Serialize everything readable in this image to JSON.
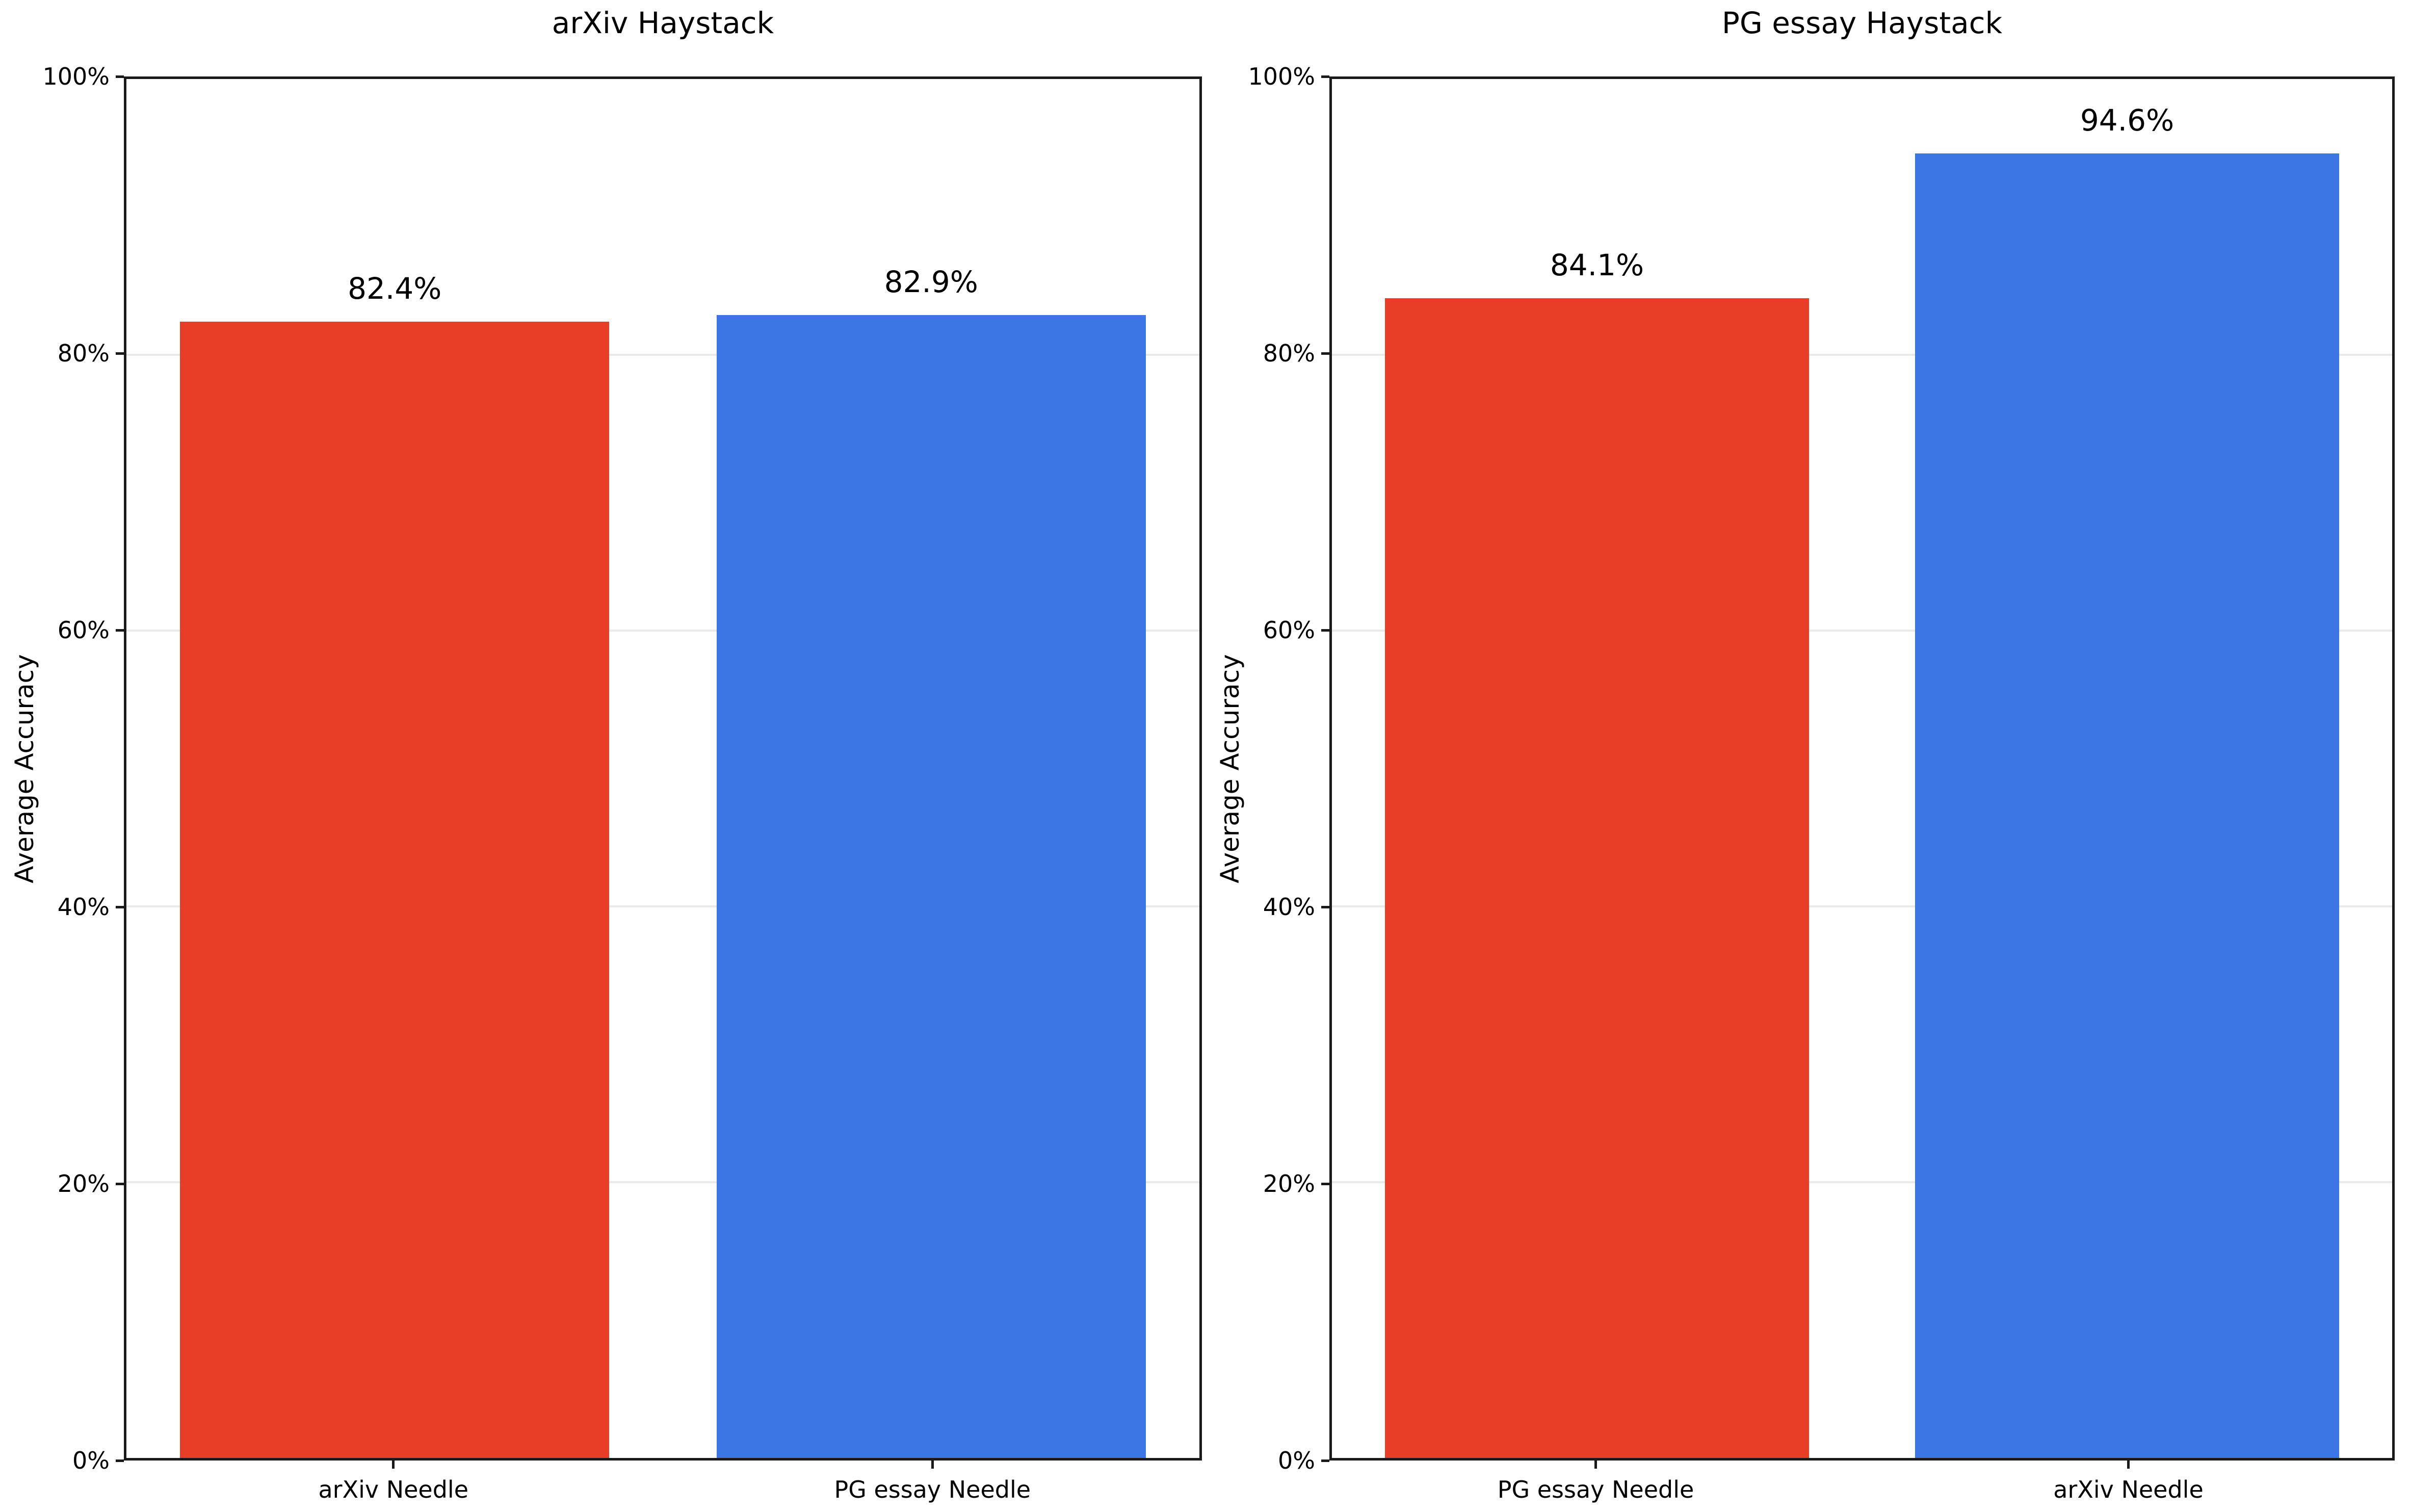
{
  "chart_data": [
    {
      "type": "bar",
      "title": "arXiv Haystack",
      "xlabel": "",
      "ylabel": "Average Accuracy",
      "categories": [
        "arXiv Needle",
        "PG essay Needle"
      ],
      "values": [
        82.4,
        82.9
      ],
      "value_labels": [
        "82.4%",
        "82.9%"
      ],
      "bar_colors": [
        "#e83e28",
        "#3b76e4"
      ],
      "ylim": [
        0,
        100
      ],
      "yticks": [
        0,
        20,
        40,
        60,
        80,
        100
      ],
      "ytick_labels": [
        "0%",
        "20%",
        "40%",
        "60%",
        "80%",
        "100%"
      ],
      "grid": "horizontal",
      "legend": "none"
    },
    {
      "type": "bar",
      "title": "PG essay Haystack",
      "xlabel": "",
      "ylabel": "Average Accuracy",
      "categories": [
        "PG essay Needle",
        "arXiv Needle"
      ],
      "values": [
        84.1,
        94.6
      ],
      "value_labels": [
        "84.1%",
        "94.6%"
      ],
      "bar_colors": [
        "#e83e28",
        "#3b76e4"
      ],
      "ylim": [
        0,
        100
      ],
      "yticks": [
        0,
        20,
        40,
        60,
        80,
        100
      ],
      "ytick_labels": [
        "0%",
        "20%",
        "40%",
        "60%",
        "80%",
        "100%"
      ],
      "grid": "horizontal",
      "legend": "none"
    }
  ]
}
